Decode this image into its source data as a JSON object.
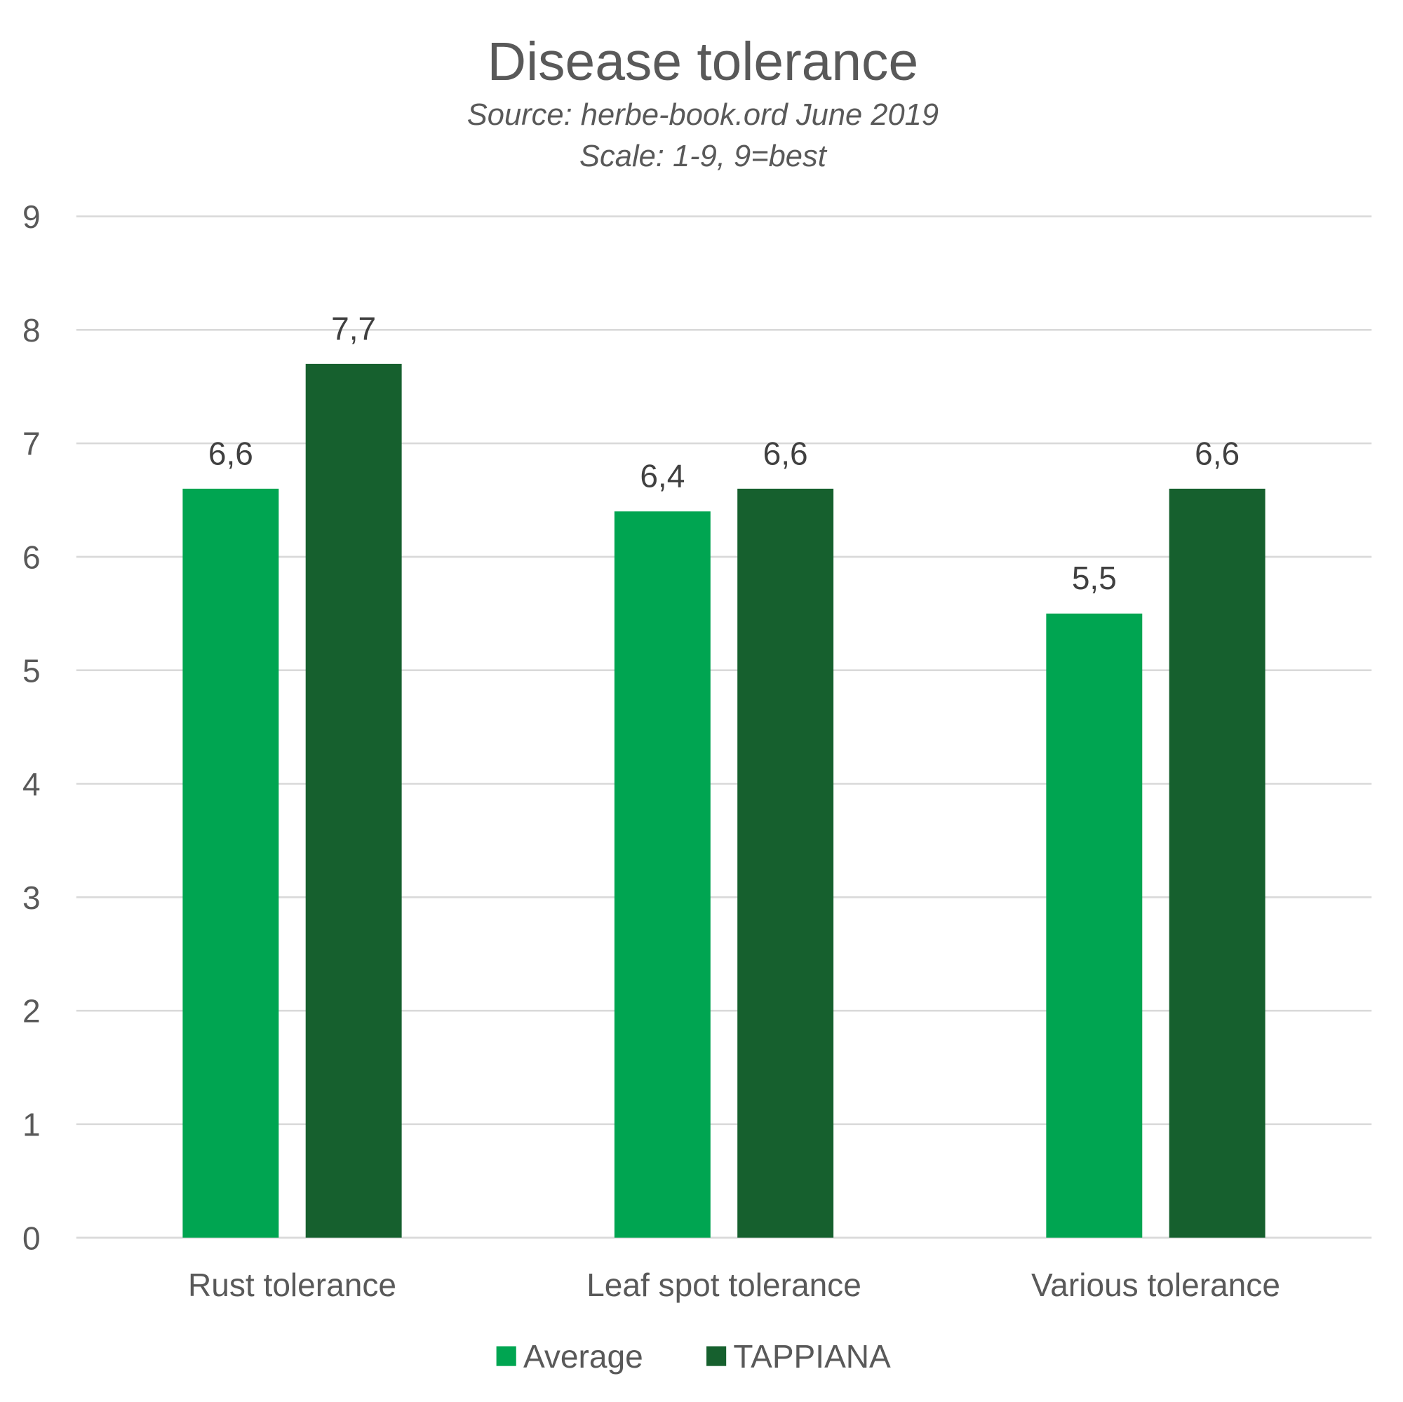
{
  "chart_data": {
    "type": "bar",
    "title": "Disease tolerance",
    "subtitle": [
      "Source: herbe-book.ord June 2019",
      "Scale: 1-9, 9=best"
    ],
    "categories": [
      "Rust tolerance",
      "Leaf spot tolerance",
      "Various tolerance"
    ],
    "series": [
      {
        "name": "Average",
        "values": [
          6.6,
          6.4,
          5.5
        ],
        "labels": [
          "6,6",
          "6,4",
          "5,5"
        ],
        "color": "#00A551"
      },
      {
        "name": "TAPPIANA",
        "values": [
          7.7,
          6.6,
          6.6
        ],
        "labels": [
          "7,7",
          "6,6",
          "6,6"
        ],
        "color": "#16602E"
      }
    ],
    "ylim": [
      0,
      9
    ],
    "yticks": [
      "0",
      "1",
      "2",
      "3",
      "4",
      "5",
      "6",
      "7",
      "8",
      "9"
    ],
    "grid": true,
    "legend": "bottom",
    "xlabel": "",
    "ylabel": ""
  }
}
